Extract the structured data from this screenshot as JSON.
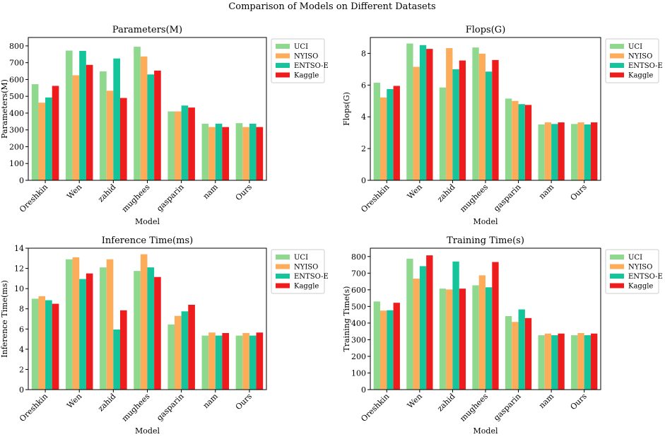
{
  "suptitle": "Comparison of Models on Different Datasets",
  "colors": {
    "UCI": "#8ed98e",
    "NYISO": "#fdac5a",
    "ENTSO-E": "#14c49a",
    "Kaggle": "#ee1c1c"
  },
  "chart_data": [
    {
      "type": "bar",
      "title": "Parameters(M)",
      "xlabel": "Model",
      "ylabel": "Parameters(M)",
      "ylim": [
        0,
        850
      ],
      "yticks": [
        0,
        100,
        200,
        300,
        400,
        500,
        600,
        700,
        800
      ],
      "categories": [
        "Oreshkin",
        "Wen",
        "zahid",
        "mughees",
        "gasparin",
        "nam",
        "Ours"
      ],
      "series": [
        {
          "name": "UCI",
          "values": [
            572,
            772,
            648,
            795,
            410,
            337,
            340
          ]
        },
        {
          "name": "NYISO",
          "values": [
            462,
            625,
            533,
            737,
            410,
            317,
            317
          ]
        },
        {
          "name": "ENTSO-E",
          "values": [
            493,
            770,
            725,
            630,
            445,
            337,
            337
          ]
        },
        {
          "name": "Kaggle",
          "values": [
            562,
            687,
            490,
            653,
            433,
            317,
            317
          ]
        }
      ],
      "legend": "outside-right"
    },
    {
      "type": "bar",
      "title": "Flops(G)",
      "xlabel": "Model",
      "ylabel": "Flops(G)",
      "ylim": [
        0,
        9
      ],
      "yticks": [
        0,
        2,
        4,
        6,
        8
      ],
      "categories": [
        "Oreshkin",
        "Wen",
        "zahid",
        "mughees",
        "gasparin",
        "nam",
        "Ours"
      ],
      "series": [
        {
          "name": "UCI",
          "values": [
            6.15,
            8.62,
            5.85,
            8.37,
            5.15,
            3.52,
            3.55
          ]
        },
        {
          "name": "NYISO",
          "values": [
            5.22,
            7.15,
            8.33,
            7.98,
            5.0,
            3.65,
            3.65
          ]
        },
        {
          "name": "ENTSO-E",
          "values": [
            5.75,
            8.52,
            7.0,
            6.85,
            4.8,
            3.55,
            3.52
          ]
        },
        {
          "name": "Kaggle",
          "values": [
            5.95,
            8.28,
            7.55,
            7.58,
            4.75,
            3.65,
            3.65
          ]
        }
      ],
      "legend": "outside-right"
    },
    {
      "type": "bar",
      "title": "Inference Time(ms)",
      "xlabel": "Model",
      "ylabel": "Inference Time(ms)",
      "ylim": [
        0,
        14
      ],
      "yticks": [
        0,
        2,
        4,
        6,
        8,
        10,
        12,
        14
      ],
      "categories": [
        "Oreshkin",
        "Wen",
        "zahid",
        "mughees",
        "gasparin",
        "nam",
        "Ours"
      ],
      "series": [
        {
          "name": "UCI",
          "values": [
            9.0,
            12.9,
            12.1,
            11.75,
            6.45,
            5.35,
            5.35
          ]
        },
        {
          "name": "NYISO",
          "values": [
            9.25,
            13.1,
            12.9,
            13.4,
            7.3,
            5.65,
            5.6
          ]
        },
        {
          "name": "ENTSO-E",
          "values": [
            8.85,
            10.95,
            5.95,
            12.1,
            7.75,
            5.35,
            5.35
          ]
        },
        {
          "name": "Kaggle",
          "values": [
            8.5,
            11.5,
            7.85,
            11.15,
            8.4,
            5.6,
            5.65
          ]
        }
      ],
      "legend": "outside-right"
    },
    {
      "type": "bar",
      "title": "Training Time(s)",
      "xlabel": "Model",
      "ylabel": "Training Time(s)",
      "ylim": [
        0,
        850
      ],
      "yticks": [
        0,
        100,
        200,
        300,
        400,
        500,
        600,
        700,
        800
      ],
      "categories": [
        "Oreshkin",
        "Wen",
        "zahid",
        "mughees",
        "gasparin",
        "nam",
        "Ours"
      ],
      "series": [
        {
          "name": "UCI",
          "values": [
            530,
            787,
            607,
            627,
            442,
            327,
            327
          ]
        },
        {
          "name": "NYISO",
          "values": [
            475,
            667,
            602,
            687,
            407,
            337,
            340
          ]
        },
        {
          "name": "ENTSO-E",
          "values": [
            477,
            742,
            770,
            615,
            482,
            327,
            327
          ]
        },
        {
          "name": "Kaggle",
          "values": [
            522,
            807,
            607,
            767,
            430,
            337,
            337
          ]
        }
      ],
      "legend": "outside-right"
    }
  ]
}
